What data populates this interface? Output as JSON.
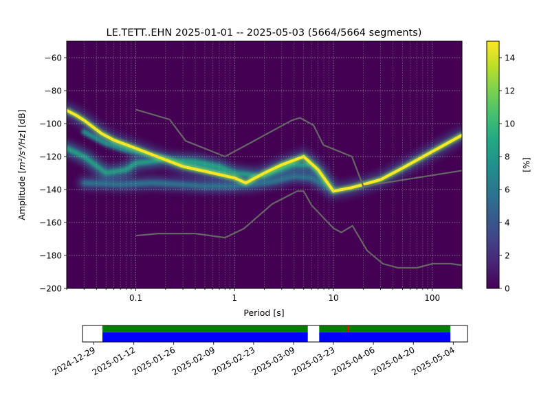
{
  "chart_data": {
    "type": "heatmap",
    "title": "LE.TETT..EHN   2025-01-01 -- 2025-05-03  (5664/5664 segments)",
    "xlabel": "Period [s]",
    "ylabel_main": "Amplitude [",
    "ylabel_math": "m²/s⁴/Hz",
    "ylabel_end": "] [dB]",
    "x_scale": "log",
    "xlim": [
      0.02,
      200
    ],
    "ylim": [
      -200,
      -50
    ],
    "x_ticks": [
      {
        "value": 0.1,
        "label": "0.1"
      },
      {
        "value": 1,
        "label": "1"
      },
      {
        "value": 10,
        "label": "10"
      },
      {
        "value": 100,
        "label": "100"
      }
    ],
    "y_ticks": [
      {
        "value": -60,
        "label": "−60"
      },
      {
        "value": -80,
        "label": "−80"
      },
      {
        "value": -100,
        "label": "−100"
      },
      {
        "value": -120,
        "label": "−120"
      },
      {
        "value": -140,
        "label": "−140"
      },
      {
        "value": -160,
        "label": "−160"
      },
      {
        "value": -180,
        "label": "−180"
      },
      {
        "value": -200,
        "label": "−200"
      }
    ],
    "grid": true,
    "colormap": "viridis",
    "colorbar": {
      "label": "[%]",
      "range": [
        0,
        15
      ],
      "ticks": [
        {
          "value": 0,
          "label": "0"
        },
        {
          "value": 2,
          "label": "2"
        },
        {
          "value": 4,
          "label": "4"
        },
        {
          "value": 6,
          "label": "6"
        },
        {
          "value": 8,
          "label": "8"
        },
        {
          "value": 10,
          "label": "10"
        },
        {
          "value": 12,
          "label": "12"
        },
        {
          "value": 14,
          "label": "14"
        }
      ]
    },
    "noise_models": {
      "color": "#666666",
      "high": [
        [
          0.1,
          -91.5
        ],
        [
          0.22,
          -97.5
        ],
        [
          0.32,
          -110.5
        ],
        [
          0.8,
          -120
        ],
        [
          3.8,
          -98
        ],
        [
          4.6,
          -96.5
        ],
        [
          6.3,
          -101
        ],
        [
          7.9,
          -113
        ],
        [
          15.4,
          -120
        ],
        [
          20,
          -138
        ],
        [
          200,
          -128.5
        ]
      ],
      "low": [
        [
          0.1,
          -168
        ],
        [
          0.17,
          -166.7
        ],
        [
          0.4,
          -166.7
        ],
        [
          0.8,
          -169.2
        ],
        [
          1.24,
          -163.7
        ],
        [
          2.4,
          -148.8
        ],
        [
          4.3,
          -141
        ],
        [
          5,
          -141
        ],
        [
          6,
          -149.5
        ],
        [
          10,
          -163.5
        ],
        [
          12,
          -166
        ],
        [
          15.6,
          -162
        ],
        [
          21.9,
          -177
        ],
        [
          31.6,
          -185
        ],
        [
          45,
          -187.5
        ],
        [
          70,
          -187.5
        ],
        [
          101,
          -185
        ],
        [
          154,
          -185
        ],
        [
          200,
          -186
        ]
      ]
    },
    "density_ridges": {
      "mode_peak": [
        [
          0.02,
          -92
        ],
        [
          0.025,
          -95
        ],
        [
          0.03,
          -98
        ],
        [
          0.045,
          -106
        ],
        [
          0.06,
          -110
        ],
        [
          0.1,
          -115
        ],
        [
          0.2,
          -122
        ],
        [
          0.3,
          -126
        ],
        [
          0.6,
          -130
        ],
        [
          1,
          -133
        ],
        [
          1.3,
          -136
        ],
        [
          2,
          -130
        ],
        [
          3,
          -125
        ],
        [
          5,
          -120
        ],
        [
          7,
          -128
        ],
        [
          10,
          -141
        ],
        [
          15,
          -139
        ],
        [
          20,
          -137
        ],
        [
          30,
          -134
        ],
        [
          50,
          -127
        ],
        [
          100,
          -117
        ],
        [
          200,
          -107
        ]
      ],
      "band_a": [
        [
          0.02,
          -115
        ],
        [
          0.03,
          -120
        ],
        [
          0.05,
          -130
        ],
        [
          0.08,
          -128
        ],
        [
          0.1,
          -124
        ],
        [
          0.2,
          -122
        ],
        [
          0.4,
          -123
        ],
        [
          0.7,
          -126
        ],
        [
          1,
          -130
        ],
        [
          2,
          -132
        ],
        [
          4,
          -125
        ],
        [
          6,
          -125
        ],
        [
          9,
          -138
        ]
      ],
      "band_b": [
        [
          0.03,
          -105
        ],
        [
          0.05,
          -112
        ],
        [
          0.08,
          -116
        ],
        [
          0.12,
          -118
        ],
        [
          0.2,
          -121
        ],
        [
          0.4,
          -126
        ],
        [
          0.8,
          -130
        ]
      ],
      "band_low": [
        [
          0.03,
          -136
        ],
        [
          0.07,
          -137
        ],
        [
          0.15,
          -136
        ],
        [
          0.3,
          -137
        ],
        [
          0.5,
          -138
        ],
        [
          0.9,
          -138
        ],
        [
          1.5,
          -137
        ],
        [
          2.5,
          -135
        ],
        [
          4,
          -132
        ],
        [
          6,
          -133
        ],
        [
          9,
          -139
        ]
      ]
    },
    "timeline": {
      "tick_labels": [
        "2024-12-29",
        "2025-01-12",
        "2025-01-26",
        "2025-02-09",
        "2025-02-23",
        "2025-03-09",
        "2025-03-23",
        "2025-04-06",
        "2025-04-20",
        "2025-05-04"
      ],
      "range": [
        "2024-12-25",
        "2025-05-09"
      ],
      "coverage_color": "#0000ff",
      "available_color": "#008000",
      "gap_marker_color": "#ff0000",
      "coverage_segments": [
        [
          "2025-01-01",
          "2025-03-14"
        ],
        [
          "2025-03-18",
          "2025-05-03"
        ]
      ],
      "gap_markers": [
        "2025-03-28"
      ]
    }
  }
}
